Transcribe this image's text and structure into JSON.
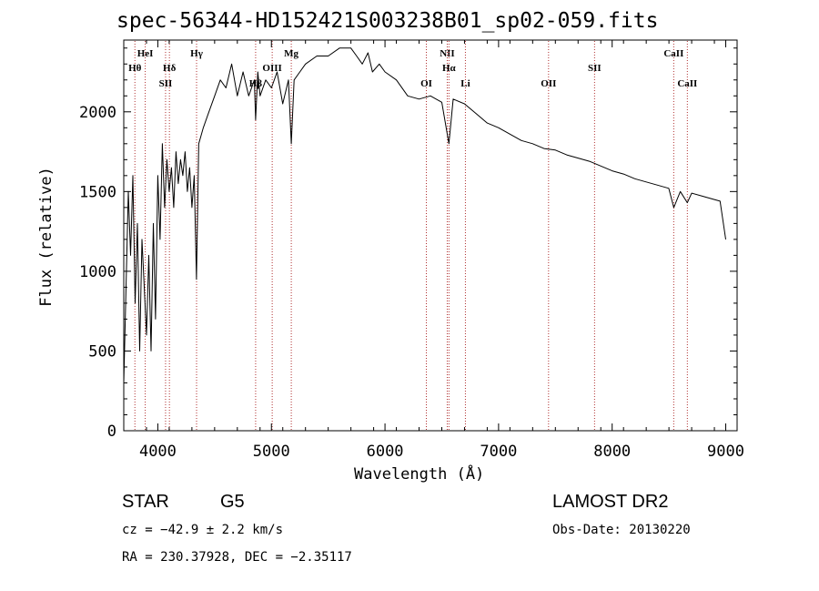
{
  "info": {
    "object_class": "STAR",
    "subclass": "G5",
    "survey": "LAMOST DR2",
    "cz": "cz = −42.9 ± 2.2 km/s",
    "obs_date": "Obs-Date: 20130220",
    "coords": "RA = 230.37928, DEC =  −2.35117"
  },
  "chart_data": {
    "type": "line",
    "title": "spec-56344-HD152421S003238B01_sp02-059.fits",
    "xlabel": "Wavelength (Å)",
    "ylabel": "Flux (relative)",
    "xlim": [
      3700,
      9100
    ],
    "ylim": [
      0,
      2450
    ],
    "xticks": [
      4000,
      5000,
      6000,
      7000,
      8000,
      9000
    ],
    "yticks": [
      0,
      500,
      1000,
      1500,
      2000
    ],
    "grid": false,
    "series": [
      {
        "line_color": "#000000",
        "x": [
          3700,
          3720,
          3740,
          3760,
          3780,
          3800,
          3820,
          3840,
          3860,
          3880,
          3900,
          3920,
          3940,
          3960,
          3980,
          4000,
          4020,
          4040,
          4060,
          4080,
          4100,
          4120,
          4140,
          4160,
          4180,
          4200,
          4220,
          4240,
          4260,
          4280,
          4300,
          4320,
          4340,
          4360,
          4380,
          4400,
          4450,
          4500,
          4550,
          4600,
          4650,
          4700,
          4750,
          4800,
          4850,
          4861,
          4880,
          4900,
          4950,
          5000,
          5050,
          5100,
          5150,
          5175,
          5200,
          5250,
          5300,
          5400,
          5500,
          5600,
          5700,
          5750,
          5800,
          5850,
          5890,
          5950,
          6000,
          6100,
          6200,
          6300,
          6400,
          6500,
          6563,
          6600,
          6700,
          6800,
          6900,
          7000,
          7100,
          7200,
          7300,
          7400,
          7500,
          7600,
          7700,
          7800,
          7900,
          8000,
          8100,
          8200,
          8300,
          8400,
          8498,
          8542,
          8600,
          8662,
          8700,
          8800,
          8900,
          8950,
          9000
        ],
        "y": [
          300,
          900,
          1500,
          1100,
          1600,
          800,
          1300,
          500,
          1200,
          900,
          600,
          1100,
          500,
          1300,
          700,
          1600,
          1200,
          1800,
          1400,
          1700,
          1500,
          1650,
          1400,
          1750,
          1550,
          1700,
          1600,
          1750,
          1500,
          1650,
          1400,
          1600,
          950,
          1800,
          1850,
          1900,
          2000,
          2100,
          2200,
          2150,
          2300,
          2100,
          2250,
          2100,
          2200,
          1950,
          2250,
          2100,
          2200,
          2150,
          2250,
          2050,
          2200,
          1800,
          2200,
          2250,
          2300,
          2350,
          2350,
          2400,
          2400,
          2350,
          2300,
          2370,
          2250,
          2300,
          2250,
          2200,
          2100,
          2080,
          2100,
          2060,
          1800,
          2080,
          2050,
          1990,
          1930,
          1900,
          1860,
          1820,
          1800,
          1770,
          1760,
          1730,
          1710,
          1690,
          1660,
          1630,
          1610,
          1580,
          1560,
          1540,
          1520,
          1400,
          1500,
          1430,
          1490,
          1470,
          1450,
          1440,
          1200
        ]
      }
    ],
    "lines": [
      {
        "label": "Hθ",
        "x": 3798,
        "row": 2
      },
      {
        "label": "HeI",
        "x": 3889,
        "row": 1
      },
      {
        "label": "SII",
        "x": 4068,
        "row": 3
      },
      {
        "label": "Hδ",
        "x": 4102,
        "row": 2
      },
      {
        "label": "Hγ",
        "x": 4341,
        "row": 1
      },
      {
        "label": "Hβ",
        "x": 4861,
        "row": 3
      },
      {
        "label": "OIII",
        "x": 5007,
        "row": 2
      },
      {
        "label": "Mg",
        "x": 5175,
        "row": 1
      },
      {
        "label": "OI",
        "x": 6364,
        "row": 3
      },
      {
        "label": "NII",
        "x": 6548,
        "row": 1
      },
      {
        "label": "Hα",
        "x": 6563,
        "row": 2
      },
      {
        "label": "Li",
        "x": 6708,
        "row": 3
      },
      {
        "label": "OII",
        "x": 7440,
        "row": 3
      },
      {
        "label": "SII",
        "x": 7845,
        "row": 2
      },
      {
        "label": "CaII",
        "x": 8542,
        "row": 1
      },
      {
        "label": "CaII",
        "x": 8662,
        "row": 3
      }
    ]
  }
}
